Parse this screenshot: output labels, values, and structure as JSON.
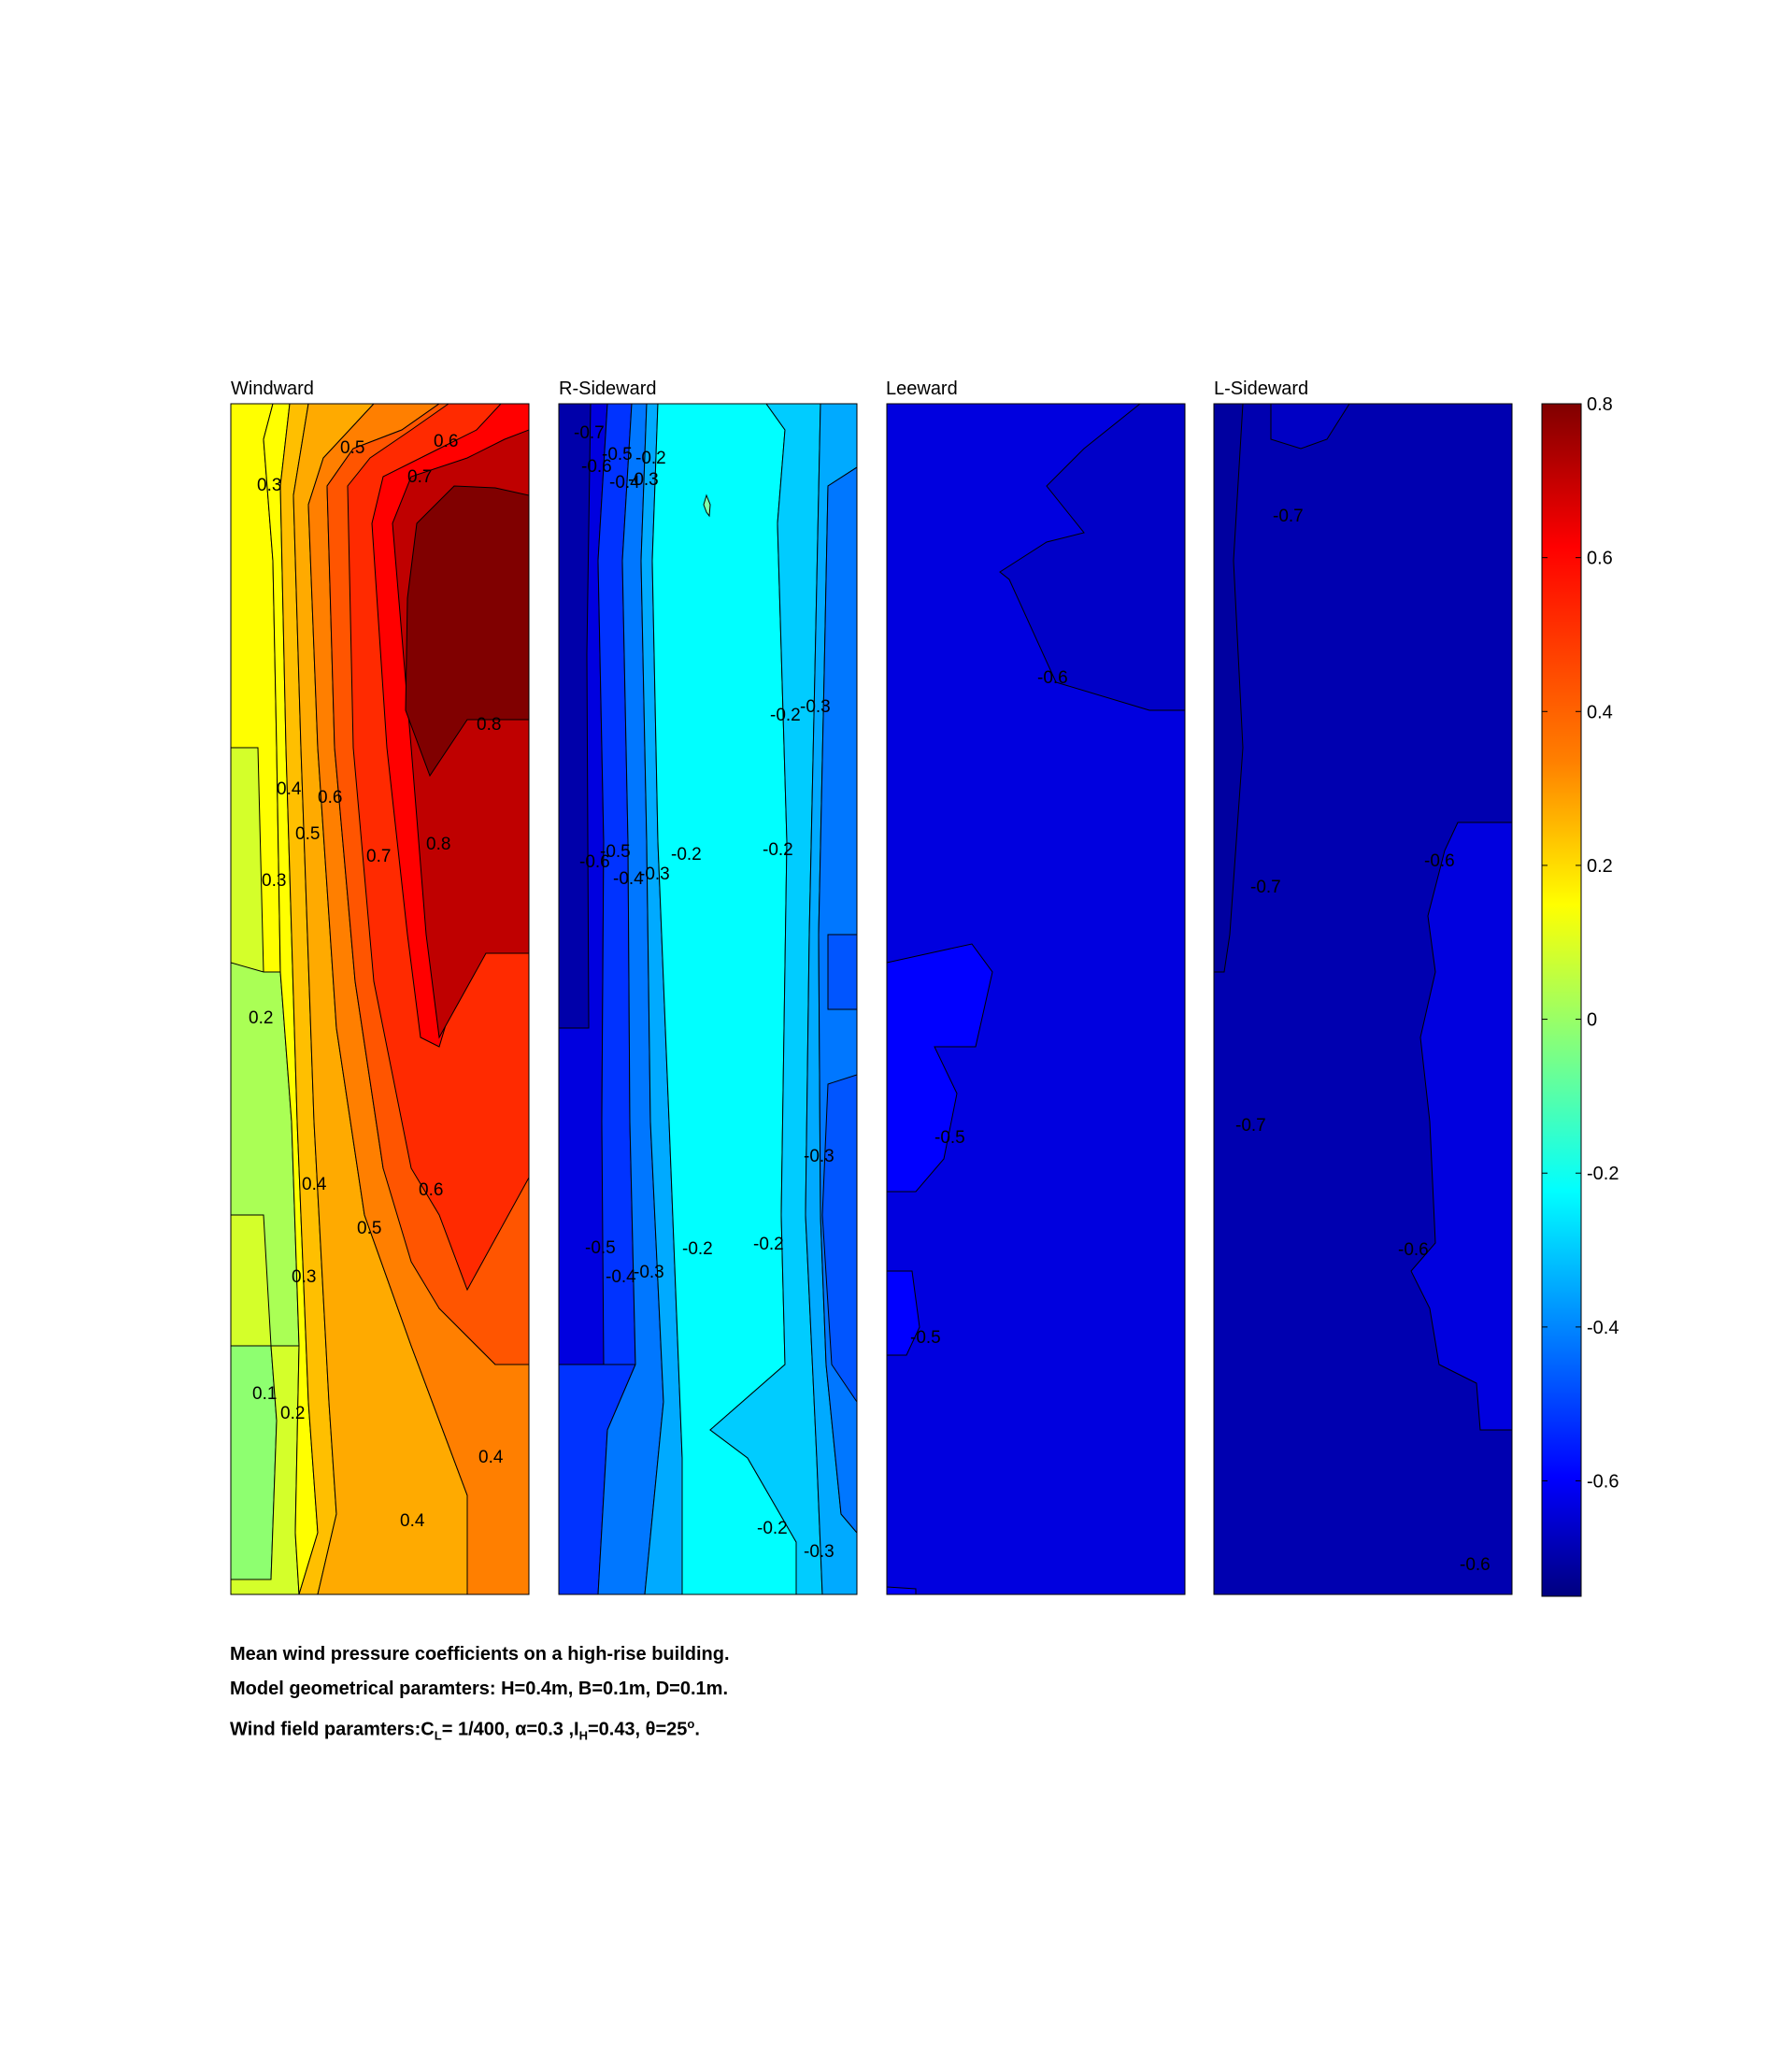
{
  "chart_data": {
    "type": "heatmap",
    "subtype": "filled-contour",
    "panels": [
      {
        "title": "Windward",
        "contour_labels": [
          "0.3",
          "0.5",
          "0.6",
          "0.7",
          "0.8",
          "0.4",
          "0.6",
          "0.5",
          "0.3",
          "0.7",
          "0.8",
          "0.2",
          "0.4",
          "0.6",
          "0.5",
          "0.3",
          "0.1",
          "0.2",
          "0.4",
          "0.4"
        ]
      },
      {
        "title": "R-Sideward",
        "contour_labels": [
          "-0.7",
          "-0.6",
          "-0.5",
          "-0.2",
          "-0.4",
          "-0.3",
          "-0.2",
          "-0.3",
          "-0.6",
          "-0.5",
          "-0.4",
          "-0.3",
          "-0.2",
          "-0.2",
          "-0.3",
          "-0.5",
          "-0.4",
          "-0.3",
          "-0.2",
          "-0.2",
          "-0.2",
          "-0.3"
        ]
      },
      {
        "title": "Leeward",
        "contour_labels": [
          "-0.6",
          "-0.5",
          "-0.5"
        ]
      },
      {
        "title": "L-Sideward",
        "contour_labels": [
          "-0.7",
          "-0.7",
          "-0.6",
          "-0.7",
          "-0.6",
          "-0.6"
        ]
      }
    ],
    "colorbar": {
      "colormap": "jet",
      "range": [
        -0.75,
        0.8
      ],
      "ticks": [
        "0.8",
        "0.6",
        "0.4",
        "0.2",
        "0",
        "-0.2",
        "-0.4",
        "-0.6"
      ]
    }
  },
  "caption": {
    "line1": "Mean wind pressure coefficients on a high-rise building.",
    "line2": "Model geometrical paramters: H=0.4m, B=0.1m, D=0.1m.",
    "line3": {
      "prefix": "Wind field paramters:C",
      "sub_L": "L",
      "mid1": "= 1/400, ",
      "alpha": "α=0.3 ,I",
      "sub_H": "H",
      "mid2": "=0.43, ",
      "theta": "θ=25",
      "sup_o": "o",
      "end": "."
    }
  }
}
